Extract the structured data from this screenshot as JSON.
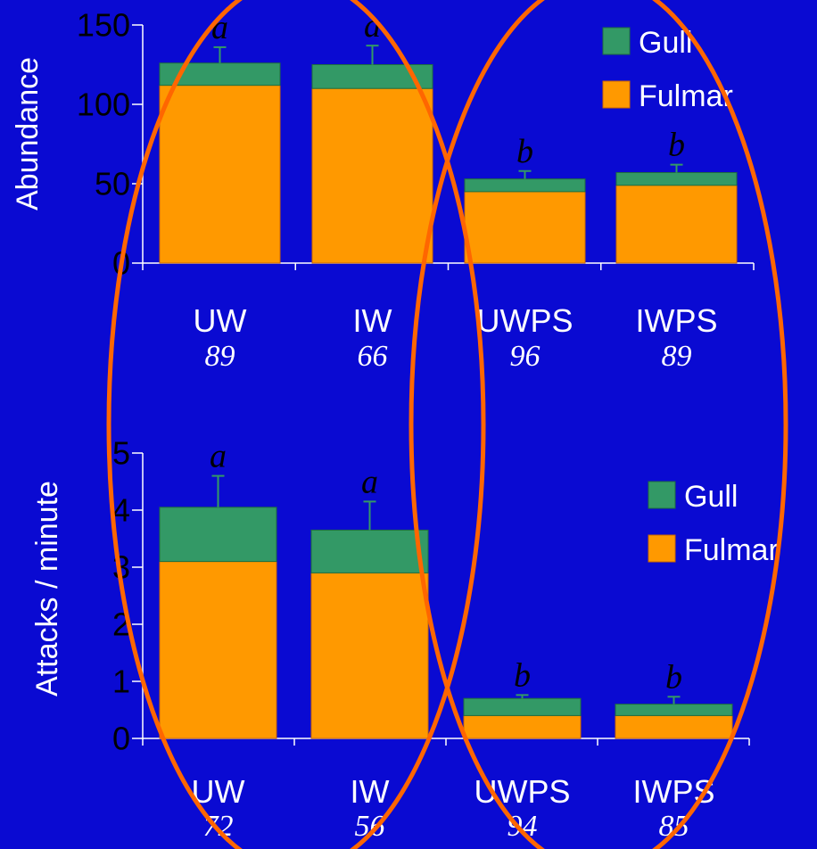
{
  "colors": {
    "background": "#0a0ad2",
    "gull": "#339966",
    "fulmar": "#ff9900",
    "ellipse": "#ff6600",
    "axis": "#ffffff",
    "error_bar": "#339966"
  },
  "chart_data": [
    {
      "type": "bar",
      "stacked": true,
      "ylabel": "Abundance",
      "ylim": [
        0,
        150
      ],
      "yticks": [
        "0",
        "50",
        "100",
        "150"
      ],
      "categories": [
        "UW",
        "IW",
        "UWPS",
        "IWPS"
      ],
      "sample_sizes": [
        "89",
        "66",
        "96",
        "89"
      ],
      "significance": [
        "a",
        "a",
        "b",
        "b"
      ],
      "series": [
        {
          "name": "Fulmar",
          "values": [
            112,
            110,
            45,
            49
          ]
        },
        {
          "name": "Gull",
          "values": [
            14,
            15,
            8,
            8
          ]
        }
      ],
      "error_tops": [
        136,
        137,
        58,
        62
      ],
      "legend": [
        "Gull",
        "Fulmar"
      ],
      "legend_position": "top-right"
    },
    {
      "type": "bar",
      "stacked": true,
      "ylabel": "Attacks / minute",
      "ylim": [
        0,
        5
      ],
      "yticks": [
        "0",
        "1",
        "2",
        "3",
        "4",
        "5"
      ],
      "categories": [
        "UW",
        "IW",
        "UWPS",
        "IWPS"
      ],
      "sample_sizes": [
        "72",
        "56",
        "94",
        "85"
      ],
      "significance": [
        "a",
        "a",
        "b",
        "b"
      ],
      "series": [
        {
          "name": "Fulmar",
          "values": [
            3.1,
            2.9,
            0.4,
            0.4
          ]
        },
        {
          "name": "Gull",
          "values": [
            0.95,
            0.75,
            0.3,
            0.2
          ]
        }
      ],
      "error_tops": [
        4.6,
        4.15,
        0.76,
        0.73
      ],
      "legend": [
        "Gull",
        "Fulmar"
      ],
      "legend_position": "right"
    }
  ]
}
